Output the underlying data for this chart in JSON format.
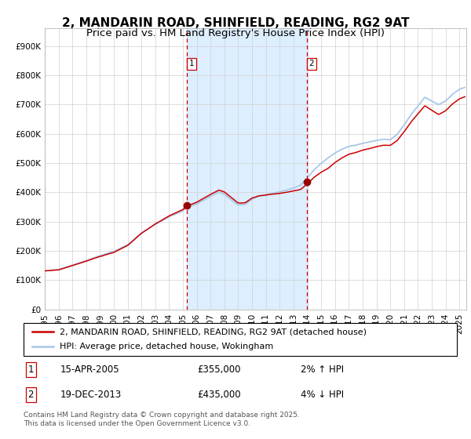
{
  "title": "2, MANDARIN ROAD, SHINFIELD, READING, RG2 9AT",
  "subtitle": "Price paid vs. HM Land Registry's House Price Index (HPI)",
  "ytick_labels": [
    "£0",
    "£100K",
    "£200K",
    "£300K",
    "£400K",
    "£500K",
    "£600K",
    "£700K",
    "£800K",
    "£900K"
  ],
  "yticks": [
    0,
    100000,
    200000,
    300000,
    400000,
    500000,
    600000,
    700000,
    800000,
    900000
  ],
  "ylim": [
    0,
    960000
  ],
  "xlim_start": 1995.0,
  "xlim_end": 2025.5,
  "xticks": [
    1995,
    1996,
    1997,
    1998,
    1999,
    2000,
    2001,
    2002,
    2003,
    2004,
    2005,
    2006,
    2007,
    2008,
    2009,
    2010,
    2011,
    2012,
    2013,
    2014,
    2015,
    2016,
    2017,
    2018,
    2019,
    2020,
    2021,
    2022,
    2023,
    2024,
    2025
  ],
  "hpi_color": "#a8c8e8",
  "price_color": "#cc0000",
  "marker_color": "#990000",
  "vline_color": "#cc0000",
  "shade_color": "#ddeeff",
  "point1_x": 2005.29,
  "point1_y": 355000,
  "point1_label": "1",
  "point2_x": 2013.96,
  "point2_y": 435000,
  "point2_label": "2",
  "legend_line1": "2, MANDARIN ROAD, SHINFIELD, READING, RG2 9AT (detached house)",
  "legend_line2": "HPI: Average price, detached house, Wokingham",
  "note1_label": "1",
  "note1_date": "15-APR-2005",
  "note1_price": "£355,000",
  "note1_hpi": "2% ↑ HPI",
  "note2_label": "2",
  "note2_date": "19-DEC-2013",
  "note2_price": "£435,000",
  "note2_hpi": "4% ↓ HPI",
  "copyright": "Contains HM Land Registry data © Crown copyright and database right 2025.\nThis data is licensed under the Open Government Licence v3.0.",
  "grid_color": "#d0d0d0",
  "title_fontsize": 11,
  "subtitle_fontsize": 9.5,
  "axis_fontsize": 7.5,
  "legend_fontsize": 8,
  "note_fontsize": 8.5,
  "copyright_fontsize": 6.5
}
